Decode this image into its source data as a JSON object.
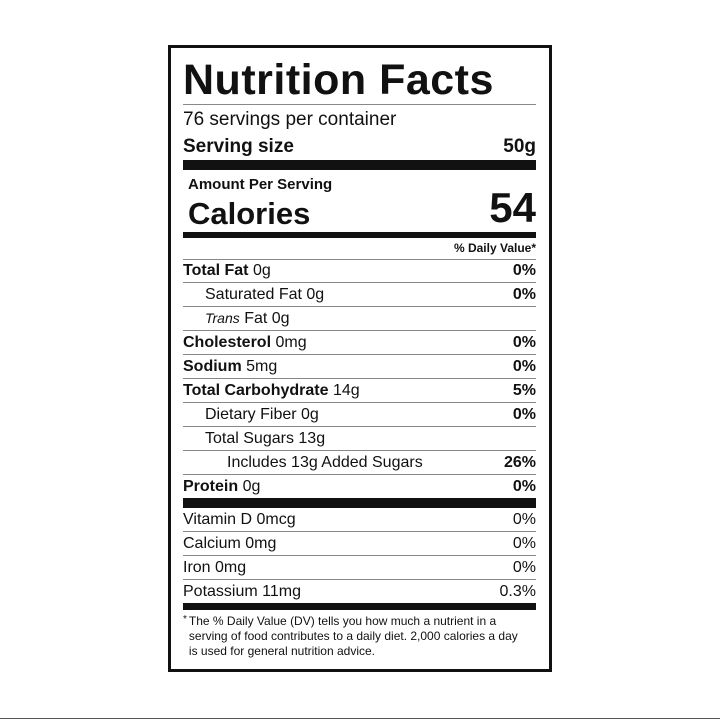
{
  "title": "Nutrition Facts",
  "servings": "76 servings per container",
  "serving_size": {
    "label": "Serving size",
    "value": "50g"
  },
  "amount_per_serving": "Amount Per Serving",
  "calories": {
    "label": "Calories",
    "value": "54"
  },
  "dv_header": "% Daily Value*",
  "nutrients": [
    {
      "name": "Total Fat",
      "amount": "0g",
      "dv": "0%"
    },
    {
      "name": "Saturated Fat",
      "amount": "0g",
      "dv": "0%"
    },
    {
      "name_italic": "Trans",
      "name": "Fat",
      "amount": "0g"
    },
    {
      "name": "Cholesterol",
      "amount": "0mg",
      "dv": "0%"
    },
    {
      "name": "Sodium",
      "amount": "5mg",
      "dv": "0%"
    },
    {
      "name": "Total Carbohydrate",
      "amount": "14g",
      "dv": "5%"
    },
    {
      "name": "Dietary Fiber",
      "amount": "0g",
      "dv": "0%"
    },
    {
      "name": "Total Sugars",
      "amount": "13g"
    },
    {
      "name": "Includes 13g Added Sugars",
      "dv": "26%"
    },
    {
      "name": "Protein",
      "amount": "0g",
      "dv": "0%"
    }
  ],
  "vitamins": [
    {
      "name": "Vitamin D 0mcg",
      "dv": "0%"
    },
    {
      "name": "Calcium 0mg",
      "dv": "0%"
    },
    {
      "name": "Iron 0mg",
      "dv": "0%"
    },
    {
      "name": "Potassium 11mg",
      "dv": "0.3%"
    }
  ],
  "footnote_mark": "*",
  "footnote": "The % Daily Value (DV) tells you how much a nutrient in a serving of food contributes to a daily diet. 2,000 calories a day is used for general nutrition advice."
}
